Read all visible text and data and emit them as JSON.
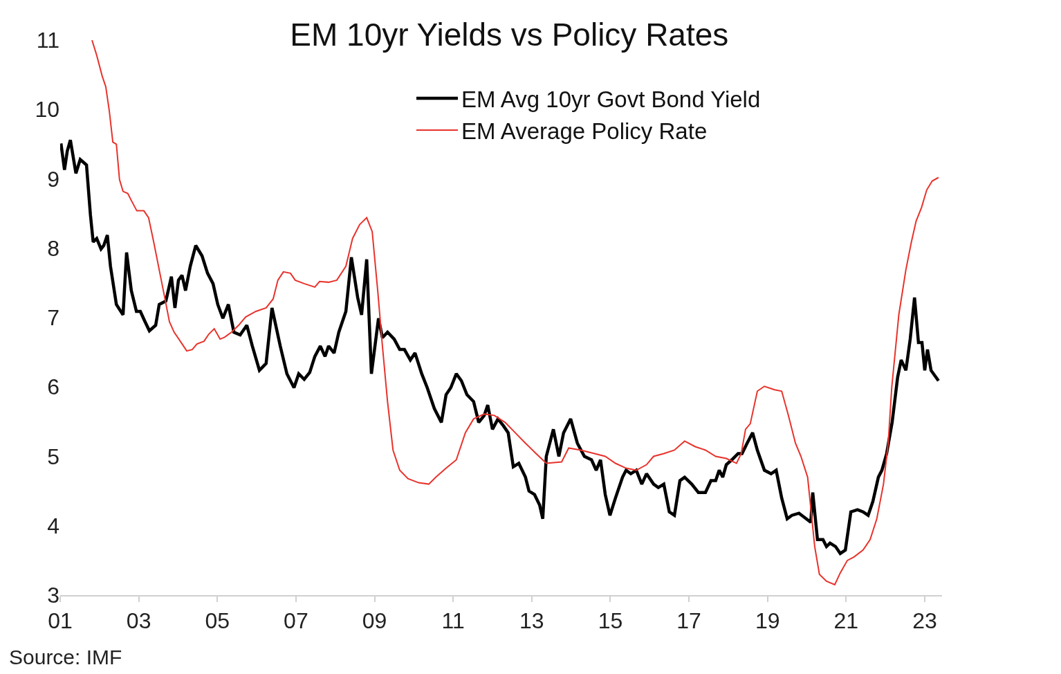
{
  "chart_data": {
    "type": "line",
    "title": "EM 10yr Yields vs Policy Rates",
    "annotations": [
      "Source: IMF"
    ],
    "xlim": [
      2001,
      2023.44
    ],
    "ylim": [
      3,
      11
    ],
    "xticks": [
      {
        "value": 2001,
        "label": "01"
      },
      {
        "value": 2003,
        "label": "03"
      },
      {
        "value": 2005,
        "label": "05"
      },
      {
        "value": 2007,
        "label": "07"
      },
      {
        "value": 2009,
        "label": "09"
      },
      {
        "value": 2011,
        "label": "11"
      },
      {
        "value": 2013,
        "label": "13"
      },
      {
        "value": 2015,
        "label": "15"
      },
      {
        "value": 2017,
        "label": "17"
      },
      {
        "value": 2019,
        "label": "19"
      },
      {
        "value": 2021,
        "label": "21"
      },
      {
        "value": 2023,
        "label": "23"
      }
    ],
    "yticks": [
      3,
      4,
      5,
      6,
      7,
      8,
      9,
      10,
      11
    ],
    "legend": "top right",
    "marker": "none",
    "line_style": "solid",
    "series": [
      {
        "name": "EM Avg 10yr Govt Bond Yield",
        "color": "#000000",
        "x": [
          2001.02,
          2001.11,
          2001.18,
          2001.26,
          2001.4,
          2001.51,
          2001.67,
          2001.77,
          2001.84,
          2001.93,
          2002.04,
          2002.11,
          2002.2,
          2002.28,
          2002.43,
          2002.6,
          2002.69,
          2002.81,
          2002.94,
          2003.04,
          2003.16,
          2003.27,
          2003.43,
          2003.52,
          2003.69,
          2003.83,
          2003.92,
          2004.01,
          2004.1,
          2004.19,
          2004.31,
          2004.45,
          2004.61,
          2004.75,
          2004.89,
          2005.01,
          2005.14,
          2005.28,
          2005.42,
          2005.58,
          2005.75,
          2005.89,
          2006.07,
          2006.24,
          2006.39,
          2006.6,
          2006.77,
          2006.95,
          2007.07,
          2007.21,
          2007.35,
          2007.48,
          2007.62,
          2007.74,
          2007.83,
          2007.97,
          2008.09,
          2008.27,
          2008.41,
          2008.57,
          2008.67,
          2008.8,
          2008.92,
          2009.1,
          2009.2,
          2009.33,
          2009.5,
          2009.64,
          2009.76,
          2009.91,
          2010.03,
          2010.2,
          2010.34,
          2010.52,
          2010.7,
          2010.82,
          2010.94,
          2011.08,
          2011.21,
          2011.35,
          2011.52,
          2011.65,
          2011.79,
          2011.88,
          2012.0,
          2012.14,
          2012.28,
          2012.4,
          2012.53,
          2012.67,
          2012.84,
          2012.93,
          2013.07,
          2013.2,
          2013.28,
          2013.37,
          2013.55,
          2013.69,
          2013.81,
          2013.99,
          2014.16,
          2014.34,
          2014.52,
          2014.64,
          2014.75,
          2014.87,
          2014.99,
          2015.13,
          2015.31,
          2015.4,
          2015.52,
          2015.66,
          2015.8,
          2015.92,
          2016.1,
          2016.22,
          2016.36,
          2016.5,
          2016.63,
          2016.77,
          2016.89,
          2017.07,
          2017.24,
          2017.42,
          2017.56,
          2017.68,
          2017.77,
          2017.86,
          2017.95,
          2018.09,
          2018.25,
          2018.35,
          2018.48,
          2018.62,
          2018.74,
          2018.92,
          2019.09,
          2019.22,
          2019.36,
          2019.5,
          2019.62,
          2019.8,
          2019.94,
          2020.1,
          2020.15,
          2020.27,
          2020.41,
          2020.5,
          2020.59,
          2020.73,
          2020.85,
          2020.98,
          2021.12,
          2021.29,
          2021.43,
          2021.56,
          2021.68,
          2021.82,
          2021.91,
          2022.03,
          2022.17,
          2022.31,
          2022.4,
          2022.52,
          2022.63,
          2022.74,
          2022.84,
          2022.93,
          2023.0,
          2023.07,
          2023.16,
          2023.35
        ],
        "values": [
          9.51,
          9.13,
          9.4,
          9.56,
          9.08,
          9.28,
          9.2,
          8.48,
          8.09,
          8.14,
          7.99,
          8.04,
          8.19,
          7.74,
          7.19,
          7.04,
          7.94,
          7.39,
          7.09,
          7.09,
          6.94,
          6.81,
          6.89,
          7.19,
          7.24,
          7.59,
          7.14,
          7.54,
          7.61,
          7.39,
          7.74,
          8.04,
          7.89,
          7.64,
          7.49,
          7.19,
          6.99,
          7.19,
          6.79,
          6.75,
          6.89,
          6.59,
          6.24,
          6.34,
          7.14,
          6.59,
          6.19,
          5.99,
          6.19,
          6.11,
          6.21,
          6.44,
          6.59,
          6.44,
          6.59,
          6.49,
          6.79,
          7.09,
          7.87,
          7.29,
          7.04,
          7.84,
          6.19,
          6.99,
          6.71,
          6.79,
          6.69,
          6.54,
          6.54,
          6.39,
          6.49,
          6.19,
          5.99,
          5.69,
          5.49,
          5.89,
          5.99,
          6.19,
          6.09,
          5.89,
          5.79,
          5.49,
          5.59,
          5.74,
          5.39,
          5.54,
          5.44,
          5.34,
          4.85,
          4.9,
          4.7,
          4.5,
          4.45,
          4.3,
          4.1,
          5.0,
          5.39,
          5.0,
          5.34,
          5.54,
          5.19,
          5.0,
          4.95,
          4.8,
          4.95,
          4.45,
          4.15,
          4.4,
          4.7,
          4.8,
          4.75,
          4.8,
          4.6,
          4.75,
          4.6,
          4.55,
          4.6,
          4.2,
          4.15,
          4.65,
          4.7,
          4.6,
          4.48,
          4.48,
          4.65,
          4.65,
          4.8,
          4.7,
          4.88,
          4.95,
          5.04,
          5.04,
          5.19,
          5.34,
          5.09,
          4.8,
          4.75,
          4.8,
          4.4,
          4.1,
          4.15,
          4.18,
          4.12,
          4.05,
          4.48,
          3.8,
          3.8,
          3.7,
          3.75,
          3.7,
          3.6,
          3.65,
          4.2,
          4.23,
          4.2,
          4.15,
          4.35,
          4.7,
          4.8,
          5.04,
          5.49,
          6.14,
          6.39,
          6.24,
          6.69,
          7.29,
          6.64,
          6.64,
          6.24,
          6.54,
          6.24,
          6.09
        ]
      },
      {
        "name": "EM Average Policy Rate",
        "color": "#e8322b",
        "x": [
          2001.81,
          2001.93,
          2002.07,
          2002.16,
          2002.25,
          2002.34,
          2002.43,
          2002.51,
          2002.6,
          2002.72,
          2002.81,
          2002.95,
          2003.13,
          2003.25,
          2003.38,
          2003.52,
          2003.66,
          2003.78,
          2003.9,
          2004.08,
          2004.22,
          2004.36,
          2004.48,
          2004.66,
          2004.78,
          2004.92,
          2005.07,
          2005.19,
          2005.36,
          2005.54,
          2005.72,
          2005.98,
          2006.24,
          2006.42,
          2006.54,
          2006.68,
          2006.86,
          2006.98,
          2007.21,
          2007.48,
          2007.6,
          2007.83,
          2008.04,
          2008.27,
          2008.44,
          2008.62,
          2008.8,
          2008.94,
          2009.08,
          2009.2,
          2009.33,
          2009.47,
          2009.64,
          2009.85,
          2010.12,
          2010.38,
          2010.56,
          2010.82,
          2011.08,
          2011.31,
          2011.52,
          2011.79,
          2012.05,
          2012.32,
          2012.58,
          2012.84,
          2013.11,
          2013.37,
          2013.76,
          2013.94,
          2014.25,
          2014.6,
          2014.87,
          2015.13,
          2015.4,
          2015.66,
          2015.92,
          2016.1,
          2016.36,
          2016.63,
          2016.89,
          2017.16,
          2017.42,
          2017.68,
          2017.95,
          2018.21,
          2018.33,
          2018.44,
          2018.56,
          2018.74,
          2018.92,
          2019.18,
          2019.36,
          2019.53,
          2019.71,
          2019.85,
          2020.02,
          2020.11,
          2020.2,
          2020.32,
          2020.5,
          2020.71,
          2020.85,
          2021.03,
          2021.2,
          2021.43,
          2021.61,
          2021.78,
          2021.95,
          2022.07,
          2022.16,
          2022.34,
          2022.52,
          2022.66,
          2022.78,
          2022.92,
          2023.05,
          2023.19,
          2023.35
        ],
        "values": [
          11.0,
          10.78,
          10.48,
          10.33,
          9.98,
          9.53,
          9.5,
          8.99,
          8.82,
          8.79,
          8.69,
          8.54,
          8.54,
          8.44,
          8.09,
          7.69,
          7.29,
          6.94,
          6.79,
          6.64,
          6.52,
          6.54,
          6.62,
          6.66,
          6.76,
          6.84,
          6.69,
          6.72,
          6.79,
          6.89,
          7.01,
          7.09,
          7.14,
          7.27,
          7.54,
          7.66,
          7.64,
          7.54,
          7.49,
          7.44,
          7.52,
          7.51,
          7.54,
          7.74,
          8.14,
          8.34,
          8.44,
          8.24,
          7.39,
          6.59,
          5.79,
          5.09,
          4.8,
          4.68,
          4.62,
          4.6,
          4.7,
          4.83,
          4.95,
          5.34,
          5.54,
          5.61,
          5.59,
          5.49,
          5.34,
          5.19,
          5.04,
          4.9,
          4.92,
          5.12,
          5.09,
          5.04,
          5.0,
          4.9,
          4.83,
          4.8,
          4.88,
          5.0,
          5.04,
          5.09,
          5.22,
          5.14,
          5.09,
          5.0,
          4.97,
          4.9,
          5.04,
          5.39,
          5.47,
          5.94,
          6.01,
          5.96,
          5.94,
          5.59,
          5.19,
          5.0,
          4.7,
          4.2,
          3.7,
          3.3,
          3.2,
          3.15,
          3.32,
          3.5,
          3.55,
          3.65,
          3.8,
          4.1,
          4.6,
          5.19,
          5.99,
          7.04,
          7.69,
          8.09,
          8.39,
          8.59,
          8.84,
          8.97,
          9.02
        ]
      }
    ]
  }
}
